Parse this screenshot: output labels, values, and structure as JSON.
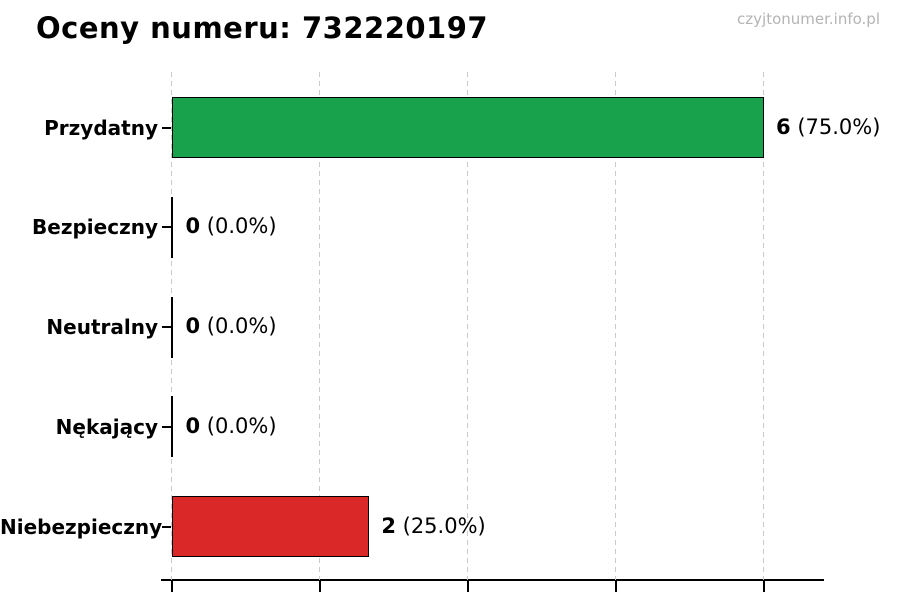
{
  "title": "Oceny numeru: 732220197",
  "watermark": "czyjtonumer.info.pl",
  "chart_data": {
    "type": "bar",
    "orientation": "horizontal",
    "title": "Oceny numeru: 732220197",
    "categories": [
      "Przydatny",
      "Bezpieczny",
      "Neutralny",
      "Nękający",
      "Niebezpieczny"
    ],
    "values": [
      6,
      0,
      0,
      0,
      2
    ],
    "pct_labels": [
      "(75.0%)",
      "(0.0%)",
      "(0.0%)",
      "(0.0%)",
      "(25.0%)"
    ],
    "value_display": [
      "6 (75.0%)",
      "0 (0.0%)",
      "0 (0.0%)",
      "0 (0.0%)",
      "2 (25.0%)"
    ],
    "bar_colors": [
      "#18a24b",
      "#000000",
      "#000000",
      "#000000",
      "#da2727"
    ],
    "xlim": [
      0,
      6.6
    ],
    "x_ticks": [
      0,
      1.5,
      3.0,
      4.5,
      6.0
    ],
    "grid": "vertical-dashed",
    "legend": "none",
    "xlabel": "",
    "ylabel": ""
  },
  "colors": {
    "positive_bar": "#18a24b",
    "negative_bar": "#da2727",
    "bar_border": "#000000",
    "grid": "#cbcbcb",
    "watermark_text": "#b4b4b4",
    "background": "#ffffff"
  }
}
